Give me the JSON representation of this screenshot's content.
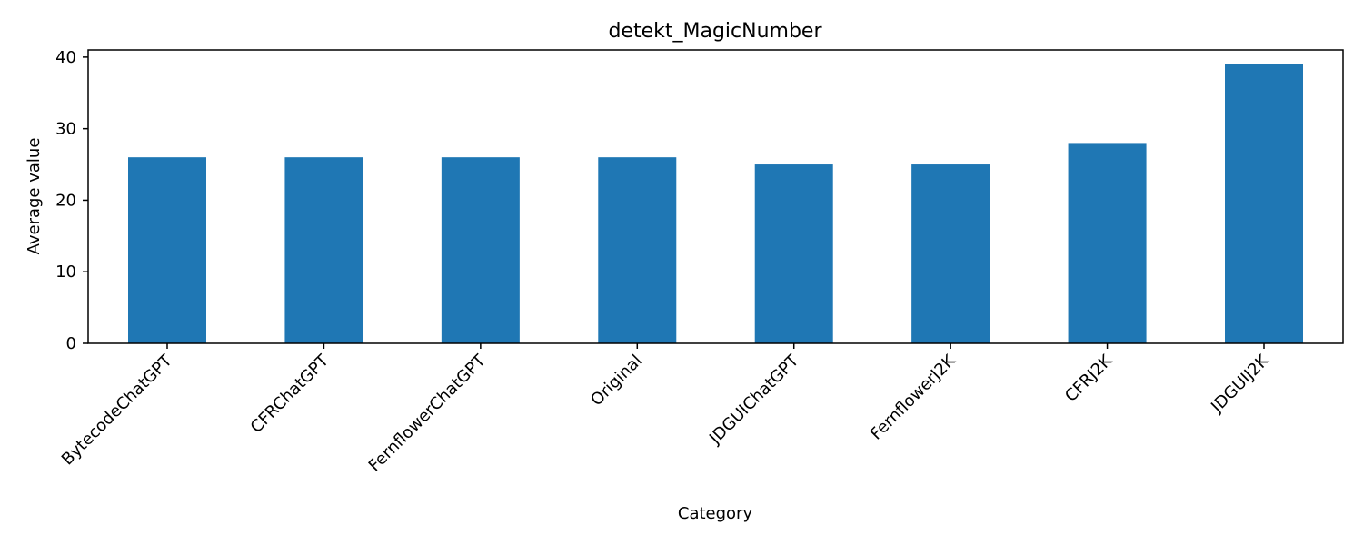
{
  "chart_data": {
    "type": "bar",
    "title": "detekt_MagicNumber",
    "xlabel": "Category",
    "ylabel": "Average value",
    "categories": [
      "BytecodeChatGPT",
      "CFRChatGPT",
      "FernflowerChatGPT",
      "Original",
      "JDGUIChatGPT",
      "FernflowerJ2K",
      "CFRJ2K",
      "JDGUIJ2K"
    ],
    "values": [
      26,
      26,
      26,
      26,
      25,
      25,
      28,
      39
    ],
    "ylim": [
      0,
      41
    ],
    "yticks": [
      0,
      10,
      20,
      30,
      40
    ],
    "grid": false,
    "bar_color": "#1f77b4"
  }
}
